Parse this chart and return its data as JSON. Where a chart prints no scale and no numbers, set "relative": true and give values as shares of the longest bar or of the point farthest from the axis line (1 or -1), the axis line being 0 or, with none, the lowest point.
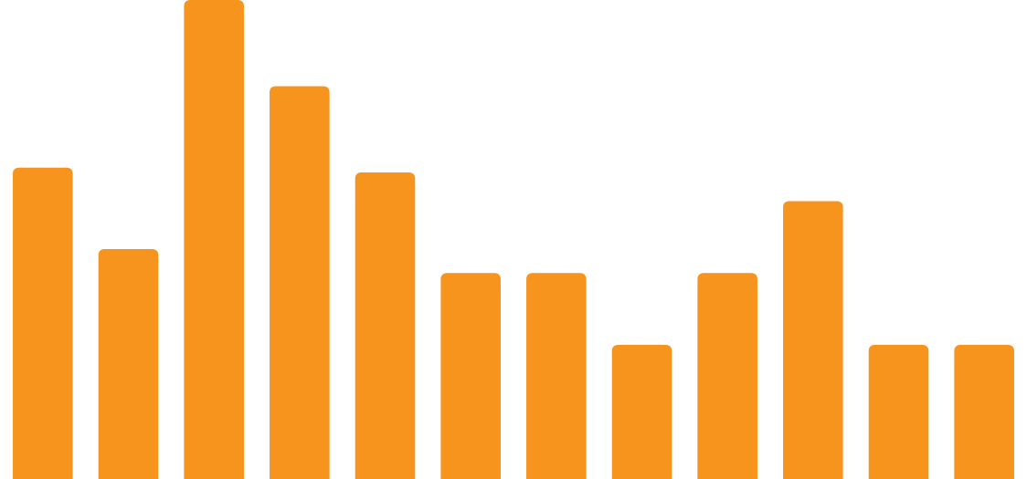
{
  "chart_data": {
    "type": "bar",
    "relative": true,
    "categories": [
      null,
      null,
      null,
      null,
      null,
      null,
      null,
      null,
      null,
      null,
      null,
      null
    ],
    "values": [
      0.65,
      0.48,
      1,
      0.82,
      0.64,
      0.43,
      0.43,
      0.28,
      0.43,
      0.58,
      0.28,
      0.28
    ],
    "color": "#f7941d",
    "legend": false
  }
}
